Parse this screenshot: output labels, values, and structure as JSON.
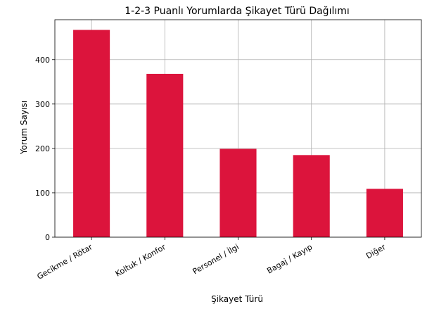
{
  "chart_data": {
    "type": "bar",
    "title": "1-2-3 Puanlı Yorumlarda Şikayet Türü Dağılımı",
    "xlabel": "Şikayet Türü",
    "ylabel": "Yorum Sayısı",
    "categories": [
      "Gecikme / Rötar",
      "Koltuk / Konfor",
      "Personel / İlgi",
      "Bagaj / Kayıp",
      "Diğer"
    ],
    "values": [
      467,
      368,
      199,
      185,
      109
    ],
    "ylim": [
      0,
      490
    ],
    "yticks": [
      0,
      100,
      200,
      300,
      400
    ],
    "ytick_labels": [
      "0",
      "100",
      "200",
      "300",
      "400"
    ],
    "grid": true,
    "bar_color": "#dc143c",
    "grid_color": "#b0b0b0"
  }
}
